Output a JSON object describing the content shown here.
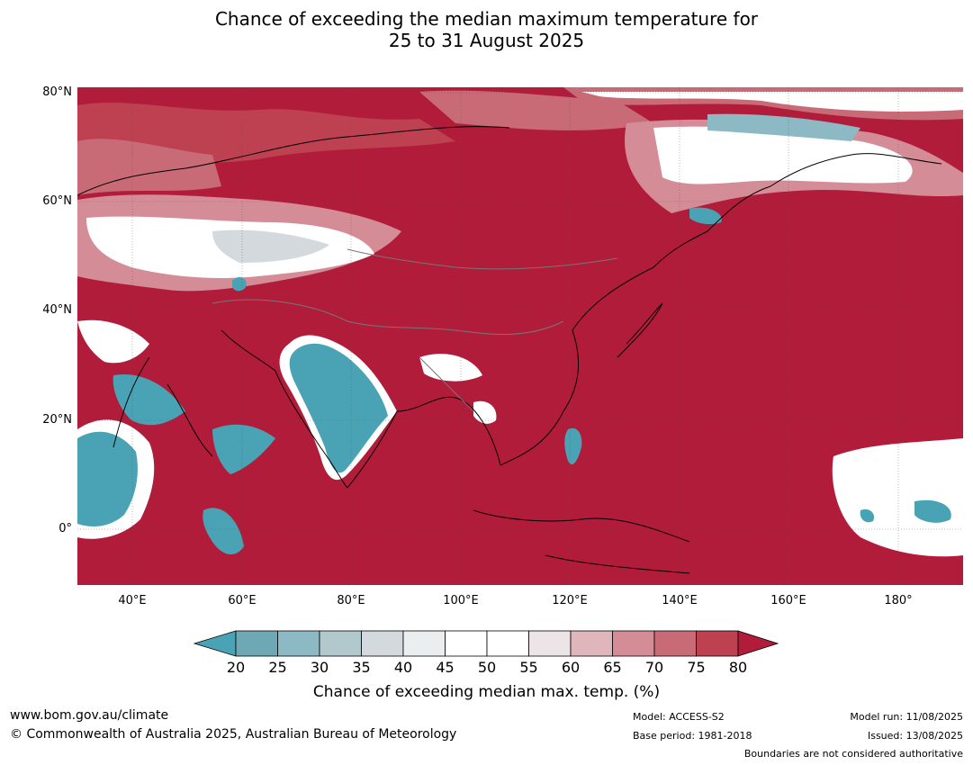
{
  "title_line1": "Chance of exceeding the median maximum temperature for",
  "title_line2": "25 to 31 August 2025",
  "map": {
    "lat_labels": [
      "80°N",
      "60°N",
      "40°N",
      "20°N",
      "0°"
    ],
    "lon_labels": [
      "40°E",
      "60°E",
      "80°E",
      "100°E",
      "120°E",
      "140°E",
      "160°E",
      "180°"
    ],
    "lat_range": [
      -10,
      81
    ],
    "lon_range": [
      30,
      192
    ]
  },
  "colorbar": {
    "ticks": [
      "20",
      "25",
      "30",
      "35",
      "40",
      "45",
      "50",
      "55",
      "60",
      "65",
      "70",
      "75",
      "80"
    ],
    "colors": [
      "#4aa3b5",
      "#6fa8b5",
      "#8cb9c3",
      "#b1c8cd",
      "#d3d9dc",
      "#eaeeef",
      "#ffffff",
      "#ffffff",
      "#ece4e6",
      "#deb6bc",
      "#d48c97",
      "#c86b77",
      "#bd4150",
      "#b11c3a"
    ],
    "label": "Chance of exceeding median max. temp. (%)"
  },
  "footer": {
    "website": "www.bom.gov.au/climate",
    "copyright": "© Commonwealth of Australia 2025, Australian Bureau of Meteorology",
    "model": "Model: ACCESS-S2",
    "base_period": "Base period: 1981-2018",
    "model_run": "Model run: 11/08/2025",
    "issued": "Issued: 13/08/2025",
    "disclaimer": "Boundaries are not considered authoritative"
  }
}
